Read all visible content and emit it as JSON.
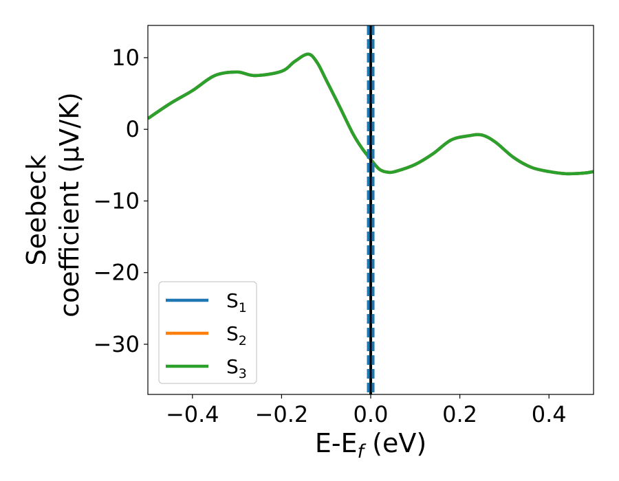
{
  "chart_data": {
    "type": "line",
    "xlabel": {
      "main": "E-E",
      "sub": "f",
      "unit": " (eV)"
    },
    "ylabel": {
      "line1": "Seebeck",
      "line2": "coefficient  (μV/K)"
    },
    "xlim": [
      -0.5,
      0.5
    ],
    "ylim": [
      -37,
      14.5
    ],
    "x_ticks": [
      -0.4,
      -0.2,
      0.0,
      0.2,
      0.4
    ],
    "x_tick_labels": [
      "−0.4",
      "−0.2",
      "0.0",
      "0.2",
      "0.4"
    ],
    "y_ticks": [
      10,
      0,
      -10,
      -20,
      -30
    ],
    "y_tick_labels": [
      "10",
      "0",
      "−10",
      "−20",
      "−30"
    ],
    "grid": false,
    "legend_placement": "lower-left",
    "vertical_line": {
      "x": 0.0,
      "styles": [
        "black solid",
        "blue dashed"
      ]
    },
    "series": [
      {
        "name": "S",
        "subscript": "1",
        "color": "#1f77b4",
        "x": [
          -0.5,
          -0.45,
          -0.4,
          -0.35,
          -0.3,
          -0.26,
          -0.2,
          -0.17,
          -0.14,
          -0.12,
          -0.1,
          -0.07,
          -0.04,
          -0.02,
          0.0,
          0.02,
          0.04,
          0.06,
          0.1,
          0.14,
          0.18,
          0.22,
          0.25,
          0.28,
          0.32,
          0.36,
          0.4,
          0.44,
          0.48,
          0.5
        ],
        "y": [
          1.5,
          3.6,
          5.4,
          7.5,
          8.0,
          7.5,
          8.1,
          9.5,
          10.5,
          9.3,
          6.9,
          3.2,
          -0.6,
          -2.6,
          -4.2,
          -5.6,
          -6.0,
          -5.8,
          -4.9,
          -3.4,
          -1.5,
          -0.9,
          -0.8,
          -1.8,
          -3.9,
          -5.3,
          -5.9,
          -6.2,
          -6.1,
          -5.9
        ]
      },
      {
        "name": "S",
        "subscript": "2",
        "color": "#ff7f0e",
        "x": [
          -0.5,
          -0.45,
          -0.4,
          -0.35,
          -0.3,
          -0.26,
          -0.2,
          -0.17,
          -0.14,
          -0.12,
          -0.1,
          -0.07,
          -0.04,
          -0.02,
          0.0,
          0.02,
          0.04,
          0.06,
          0.1,
          0.14,
          0.18,
          0.22,
          0.25,
          0.28,
          0.32,
          0.36,
          0.4,
          0.44,
          0.48,
          0.5
        ],
        "y": [
          1.5,
          3.6,
          5.4,
          7.5,
          8.0,
          7.5,
          8.1,
          9.5,
          10.5,
          9.3,
          6.9,
          3.2,
          -0.6,
          -2.6,
          -4.2,
          -5.6,
          -6.0,
          -5.8,
          -4.9,
          -3.4,
          -1.5,
          -0.9,
          -0.8,
          -1.8,
          -3.9,
          -5.3,
          -5.9,
          -6.2,
          -6.1,
          -5.9
        ]
      },
      {
        "name": "S",
        "subscript": "3",
        "color": "#2ca02c",
        "x": [
          -0.5,
          -0.45,
          -0.4,
          -0.35,
          -0.3,
          -0.26,
          -0.2,
          -0.17,
          -0.14,
          -0.12,
          -0.1,
          -0.07,
          -0.04,
          -0.02,
          0.0,
          0.02,
          0.04,
          0.06,
          0.1,
          0.14,
          0.18,
          0.22,
          0.25,
          0.28,
          0.32,
          0.36,
          0.4,
          0.44,
          0.48,
          0.5
        ],
        "y": [
          1.5,
          3.6,
          5.4,
          7.5,
          8.0,
          7.5,
          8.1,
          9.5,
          10.5,
          9.3,
          6.9,
          3.2,
          -0.6,
          -2.6,
          -4.2,
          -5.6,
          -6.0,
          -5.8,
          -4.9,
          -3.4,
          -1.5,
          -0.9,
          -0.8,
          -1.8,
          -3.9,
          -5.3,
          -5.9,
          -6.2,
          -6.1,
          -5.9
        ]
      }
    ]
  }
}
